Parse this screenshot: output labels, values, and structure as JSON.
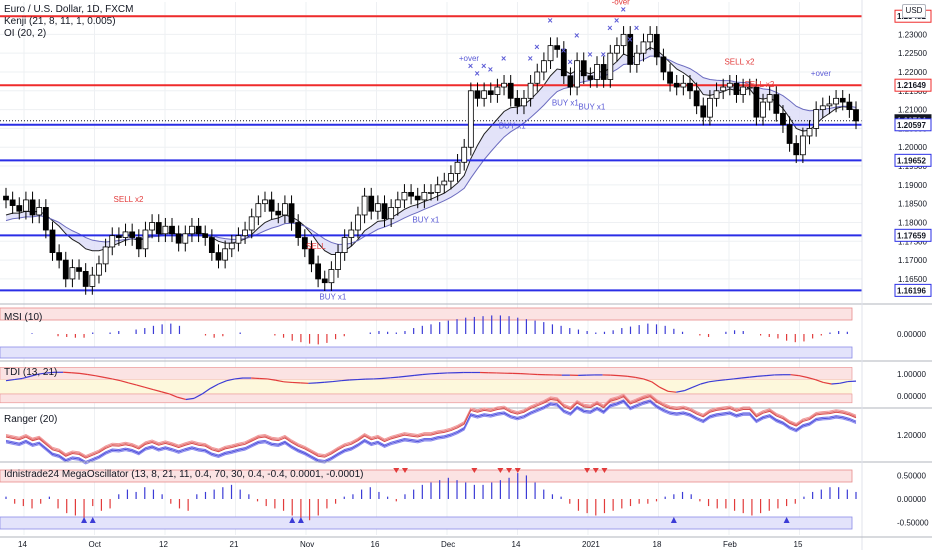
{
  "legend": {
    "title": "Euro / U.S. Dollar, 1D, FXCM",
    "kenji": "Kenji (21, 8, 11, 1, 0.005)",
    "oi": "OI (20, 2)"
  },
  "currency": "USD",
  "panels": {
    "msi": "MSI (10)",
    "tdi": "TDI (13, 21)",
    "ranger": "Ranger (20)",
    "mega": "Idnistrade24 MegaOscillator (13, 8, 21, 11, 0.4, 70, 30, 0.4, -0.4, 0.0001, -0.0001)"
  },
  "colors": {
    "up": "#ffffff",
    "down": "#000000",
    "level": "#2a2ee6",
    "resistance": "#ef2b2b",
    "signal_blue": "#5b5bd6",
    "signal_red": "#e23b3b",
    "band_pink": "#f6c9c9",
    "band_blue": "#c9c9f6"
  },
  "chart_data": {
    "type": "candlestick",
    "x_tick_labels": [
      "14",
      "Oct",
      "12",
      "21",
      "Nov",
      "16",
      "Dec",
      "14",
      "2021",
      "18",
      "Feb",
      "15"
    ],
    "y_ticks": [
      "1.16500",
      "1.17000",
      "1.17500",
      "1.18000",
      "1.18500",
      "1.19000",
      "1.19500",
      "1.20000",
      "1.20500",
      "1.21000",
      "1.21500",
      "1.22000",
      "1.22500",
      "1.23000",
      "1.23500"
    ],
    "ylim": [
      1.1594,
      1.2386
    ],
    "price_levels": [
      {
        "label": "1.23482",
        "value": 1.23482,
        "color": "#ef2b2b"
      },
      {
        "label": "1.21649",
        "value": 1.21649,
        "color": "#ef2b2b"
      },
      {
        "label": "1.20704",
        "value": 1.20704,
        "color": "#131722",
        "current": true
      },
      {
        "label": "1.20597",
        "value": 1.20597,
        "color": "#2a2ee6"
      },
      {
        "label": "1.19652",
        "value": 1.19652,
        "color": "#2a2ee6"
      },
      {
        "label": "1.17659",
        "value": 1.17659,
        "color": "#2a2ee6"
      },
      {
        "label": "1.16196",
        "value": 1.16196,
        "color": "#2a2ee6"
      }
    ],
    "close": [
      1.186,
      1.1845,
      1.183,
      1.186,
      1.182,
      1.184,
      1.178,
      1.172,
      1.17,
      1.165,
      1.168,
      1.167,
      1.163,
      1.166,
      1.169,
      1.1735,
      1.1765,
      1.176,
      1.1775,
      1.176,
      1.173,
      1.178,
      1.18,
      1.177,
      1.179,
      1.177,
      1.1745,
      1.177,
      1.179,
      1.177,
      1.176,
      1.172,
      1.17,
      1.173,
      1.1745,
      1.1765,
      1.178,
      1.1815,
      1.185,
      1.186,
      1.183,
      1.182,
      1.185,
      1.18,
      1.176,
      1.173,
      1.169,
      1.165,
      1.164,
      1.1675,
      1.172,
      1.176,
      1.178,
      1.182,
      1.187,
      1.183,
      1.185,
      1.181,
      1.184,
      1.186,
      1.188,
      1.187,
      1.186,
      1.188,
      1.188,
      1.19,
      1.191,
      1.193,
      1.196,
      1.2,
      1.215,
      1.213,
      1.215,
      1.214,
      1.216,
      1.217,
      1.213,
      1.211,
      1.213,
      1.217,
      1.22,
      1.223,
      1.227,
      1.226,
      1.219,
      1.216,
      1.223,
      1.219,
      1.218,
      1.222,
      1.218,
      1.225,
      1.227,
      1.23,
      1.222,
      1.225,
      1.228,
      1.23,
      1.224,
      1.22,
      1.217,
      1.216,
      1.217,
      1.215,
      1.211,
      1.208,
      1.213,
      1.215,
      1.216,
      1.217,
      1.214,
      1.216,
      1.216,
      1.208,
      1.212,
      1.214,
      1.209,
      1.206,
      1.201,
      1.198,
      1.203,
      1.205,
      1.21,
      1.211,
      1.2115,
      1.213,
      1.212,
      1.21,
      1.207
    ],
    "series": [
      {
        "name": "Kenji",
        "values": [
          1.182,
          1.1825,
          1.1825,
          1.183,
          1.1828,
          1.183,
          1.182,
          1.1805,
          1.179,
          1.177,
          1.1755,
          1.1745,
          1.173,
          1.1725,
          1.1725,
          1.173,
          1.1738,
          1.1745,
          1.1753,
          1.1757,
          1.1753,
          1.1758,
          1.1765,
          1.1767,
          1.1772,
          1.1772,
          1.1768,
          1.1768,
          1.1772,
          1.1772,
          1.177,
          1.176,
          1.175,
          1.1745,
          1.1745,
          1.175,
          1.1756,
          1.1768,
          1.1785,
          1.18,
          1.1808,
          1.1812,
          1.182,
          1.1815,
          1.1805,
          1.179,
          1.177,
          1.1745,
          1.1725,
          1.1715,
          1.1715,
          1.1725,
          1.1737,
          1.1755,
          1.1778,
          1.179,
          1.1803,
          1.1805,
          1.1813,
          1.1823,
          1.1835,
          1.1843,
          1.1848,
          1.1856,
          1.1862,
          1.187,
          1.1878,
          1.189,
          1.1905,
          1.1925,
          1.197,
          1.2005,
          1.2035,
          1.2055,
          1.2075,
          1.2095,
          1.2105,
          1.2107,
          1.2113,
          1.2127,
          1.2145,
          1.2165,
          1.219,
          1.2208,
          1.2205,
          1.2195,
          1.2205,
          1.22,
          1.2195,
          1.2203,
          1.2198,
          1.2213,
          1.2228,
          1.2248,
          1.224,
          1.2243,
          1.2253,
          1.2265,
          1.2258,
          1.2243,
          1.2225,
          1.2208,
          1.2198,
          1.2185,
          1.2165,
          1.214,
          1.2138,
          1.2142,
          1.2148,
          1.2155,
          1.215,
          1.2153,
          1.2155,
          1.2132,
          1.2128,
          1.2132,
          1.212,
          1.2103,
          1.2078,
          1.205,
          1.2043,
          1.2045,
          1.2062,
          1.2078,
          1.209,
          1.2103,
          1.2108,
          1.2106,
          1.2095
        ]
      },
      {
        "name": "OI basis",
        "values": [
          1.1805,
          1.181,
          1.1812,
          1.1815,
          1.1815,
          1.1818,
          1.1815,
          1.1808,
          1.18,
          1.1788,
          1.1778,
          1.177,
          1.176,
          1.1753,
          1.175,
          1.1748,
          1.175,
          1.1752,
          1.1755,
          1.1757,
          1.1757,
          1.1758,
          1.1762,
          1.1763,
          1.1766,
          1.1767,
          1.1767,
          1.1767,
          1.1768,
          1.1768,
          1.1768,
          1.1765,
          1.176,
          1.1757,
          1.1755,
          1.1755,
          1.1757,
          1.1762,
          1.177,
          1.1778,
          1.1785,
          1.179,
          1.1797,
          1.1798,
          1.1796,
          1.179,
          1.178,
          1.1768,
          1.1756,
          1.1747,
          1.1742,
          1.1742,
          1.1745,
          1.1752,
          1.1763,
          1.1772,
          1.1782,
          1.1788,
          1.1795,
          1.1803,
          1.1812,
          1.182,
          1.1827,
          1.1835,
          1.1842,
          1.185,
          1.1858,
          1.1867,
          1.1878,
          1.1891,
          1.1918,
          1.1943,
          1.1967,
          1.1988,
          1.2008,
          1.2027,
          1.2041,
          1.2052,
          1.2064,
          1.2079,
          1.2095,
          1.2112,
          1.2131,
          1.2148,
          1.2156,
          1.216,
          1.217,
          1.2174,
          1.2178,
          1.2185,
          1.2188,
          1.2197,
          1.2207,
          1.222,
          1.2222,
          1.2226,
          1.2233,
          1.2242,
          1.2242,
          1.2238,
          1.2231,
          1.2222,
          1.2216,
          1.2209,
          1.2198,
          1.2185,
          1.218,
          1.2178,
          1.2177,
          1.2177,
          1.2173,
          1.2172,
          1.2171,
          1.216,
          1.2155,
          1.2153,
          1.2146,
          1.2137,
          1.2124,
          1.2109,
          1.2101,
          1.2097,
          1.2098,
          1.2101,
          1.2103,
          1.2107,
          1.2109,
          1.2109,
          1.2106
        ]
      }
    ],
    "annotations": [
      {
        "text": "BUY x1",
        "i": 49
      },
      {
        "text": "BUY x1",
        "i": 63
      },
      {
        "text": "BUY x1",
        "i": 76
      },
      {
        "text": "BUY x1",
        "i": 88
      },
      {
        "text": "BUY x1",
        "i": 84
      },
      {
        "text": "SELL x2",
        "i": 18
      },
      {
        "text": "SELL",
        "i": 47
      },
      {
        "text": "SELL x2",
        "i": 110
      },
      {
        "text": "SELL x2",
        "i": 113
      },
      {
        "text": "+over",
        "i": 70
      },
      {
        "text": "-over",
        "i": 93
      },
      {
        "text": "+over",
        "i": 123
      }
    ],
    "msi": {
      "ylim": [
        -0.35,
        0.35
      ],
      "tick": "0.00000",
      "values": [
        0,
        0,
        0,
        0.01,
        0,
        0,
        -0.03,
        -0.04,
        -0.05,
        -0.05,
        0.02,
        0,
        0.02,
        0.04,
        0,
        0.06,
        0.08,
        0.11,
        0.13,
        0.14,
        0.11,
        0,
        0,
        -0.02,
        -0.05,
        -0.03,
        0,
        0.02,
        0,
        0,
        0,
        -0.02,
        -0.05,
        -0.09,
        -0.11,
        -0.13,
        -0.14,
        -0.12,
        -0.07,
        -0.03,
        0,
        0,
        0.02,
        0.04,
        0.03,
        0.02,
        0.04,
        0.08,
        0.11,
        0.13,
        0.16,
        0.18,
        0.2,
        0.22,
        0.23,
        0.24,
        0.25,
        0.25,
        0.24,
        0.22,
        0.2,
        0.18,
        0.16,
        0.13,
        0.11,
        0.08,
        0.06,
        0.04,
        0.02,
        0.03,
        0.05,
        0.08,
        0.1,
        0.12,
        0.14,
        0.13,
        0.11,
        0.07,
        0.03,
        0,
        -0.02,
        -0.04,
        0,
        0.03,
        0.05,
        0.04,
        0,
        -0.02,
        -0.04,
        -0.06,
        -0.09,
        -0.11,
        -0.1,
        -0.06,
        -0.02,
        0.02,
        0.04,
        0.03,
        0
      ]
    },
    "tdi": {
      "ylim": [
        -0.4,
        1.5
      ],
      "ticks": [
        "1.00000",
        "0.00000"
      ],
      "values": [
        0.7,
        0.75,
        0.8,
        0.9,
        1.0,
        1.05,
        1.08,
        1.08,
        1.06,
        1.03,
        0.98,
        0.92,
        0.85,
        0.78,
        0.7,
        0.6,
        0.5,
        0.4,
        0.3,
        0.2,
        0.1,
        -0.05,
        -0.15,
        -0.1,
        0.1,
        0.35,
        0.55,
        0.7,
        0.78,
        0.82,
        0.82,
        0.8,
        0.78,
        0.72,
        0.65,
        0.62,
        0.6,
        0.58,
        0.6,
        0.63,
        0.66,
        0.7,
        0.73,
        0.75,
        0.77,
        0.78,
        0.8,
        0.83,
        0.86,
        0.9,
        0.94,
        0.98,
        1.01,
        1.03,
        1.05,
        1.06,
        1.07,
        1.07,
        1.07,
        1.06,
        1.05,
        1.04,
        1.03,
        1.02,
        1.0,
        0.98,
        0.97,
        0.96,
        0.95,
        0.95,
        0.94,
        0.95,
        0.96,
        0.96,
        0.95,
        0.93,
        0.9,
        0.85,
        0.78,
        0.65,
        0.4,
        0.22,
        0.18,
        0.25,
        0.4,
        0.55,
        0.65,
        0.7,
        0.74,
        0.78,
        0.82,
        0.86,
        0.9,
        0.93,
        0.96,
        0.97,
        0.97,
        0.93,
        0.85,
        0.75,
        0.62,
        0.55,
        0.58,
        0.66,
        0.68
      ]
    },
    "ranger": {
      "ylim": [
        1.14,
        1.26
      ],
      "tick": "1.20000"
    },
    "mega": {
      "ylim": [
        -0.7,
        0.7
      ],
      "ticks": [
        "0.50000",
        "0.00000",
        "-0.50000"
      ],
      "values": [
        0.05,
        -0.1,
        -0.15,
        -0.2,
        -0.1,
        0.05,
        -0.2,
        -0.3,
        -0.35,
        -0.4,
        -0.15,
        -0.25,
        -0.2,
        0.1,
        0.2,
        0.15,
        0.25,
        0.2,
        0.1,
        -0.1,
        -0.2,
        -0.25,
        0.1,
        0.15,
        0.2,
        0.25,
        0.3,
        0.2,
        0.1,
        -0.05,
        -0.15,
        -0.2,
        -0.25,
        -0.35,
        -0.4,
        -0.45,
        -0.35,
        -0.2,
        -0.1,
        0.05,
        0.1,
        0.2,
        0.25,
        0.15,
        0.05,
        -0.05,
        0.1,
        0.2,
        0.3,
        0.35,
        0.4,
        0.45,
        0.4,
        0.35,
        0.3,
        0.3,
        0.35,
        0.4,
        0.45,
        0.55,
        0.5,
        0.35,
        0.2,
        0.1,
        0.05,
        -0.1,
        -0.25,
        -0.3,
        -0.35,
        -0.3,
        -0.25,
        -0.2,
        -0.15,
        -0.1,
        -0.1,
        -0.05,
        0.05,
        0.1,
        0.15,
        0.1,
        -0.05,
        -0.15,
        -0.2,
        -0.2,
        -0.25,
        -0.3,
        -0.35,
        -0.3,
        -0.25,
        -0.2,
        -0.15,
        -0.1,
        0.05,
        0.15,
        0.2,
        0.25,
        0.25,
        0.2,
        0.15
      ]
    },
    "top_labels_x": [
      "14",
      "Oct",
      "12",
      "21",
      "Nov",
      "16",
      "Dec",
      "14",
      "2021",
      "18",
      "Feb",
      "15"
    ]
  }
}
